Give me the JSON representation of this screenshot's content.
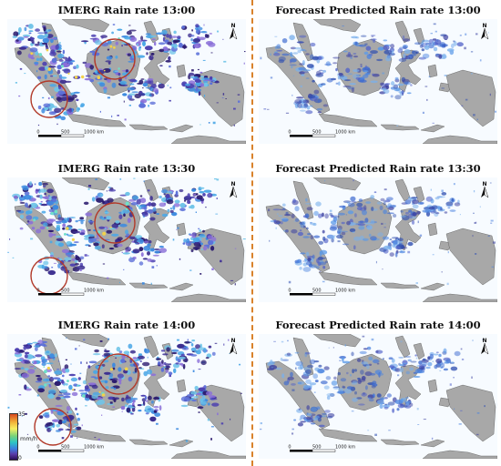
{
  "panels": [
    {
      "id": "imerg-1300",
      "title": "IMERG Rain rate 13:00",
      "kind": "imerg",
      "circles": true
    },
    {
      "id": "forecast-1300",
      "title": "Forecast Predicted Rain rate 13:00",
      "kind": "forecast",
      "circles": false
    },
    {
      "id": "imerg-1330",
      "title": "IMERG Rain rate 13:30",
      "kind": "imerg",
      "circles": true
    },
    {
      "id": "forecast-1330",
      "title": "Forecast Predicted Rain rate 13:30",
      "kind": "forecast",
      "circles": false
    },
    {
      "id": "imerg-1400",
      "title": "IMERG Rain rate 14:00",
      "kind": "imerg",
      "circles": true
    },
    {
      "id": "forecast-1400",
      "title": "Forecast Predicted Rain rate 14:00",
      "kind": "forecast",
      "circles": false
    }
  ],
  "scalebar": {
    "ticks": [
      "0",
      "500",
      "1000 km"
    ]
  },
  "north_arrow": {
    "label": "N",
    "icon": "north-arrow-icon"
  },
  "legend": {
    "max": "35",
    "min": "0",
    "unit": "mm/h",
    "colors": [
      "#d9481e",
      "#f2b43a",
      "#f7ef63",
      "#79d27a",
      "#2ec6c3",
      "#3d7fe0",
      "#5a3aa8",
      "#2a0f55"
    ]
  },
  "colors": {
    "land": "#a8a8a8",
    "sea": "#f7fbff",
    "circle": "#b23a2a",
    "divider": "#d9822b"
  }
}
